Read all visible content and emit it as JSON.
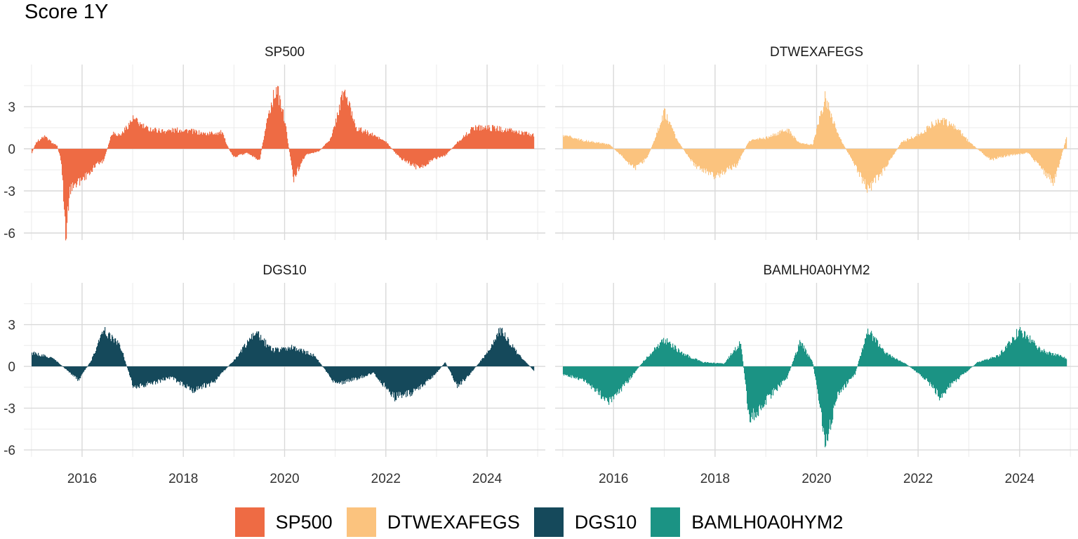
{
  "chart_data": {
    "type": "bar",
    "title": "Score 1Y",
    "facet_layout": "2x2",
    "x_ticks": [
      "2016",
      "2018",
      "2020",
      "2022",
      "2024"
    ],
    "y_ticks": [
      "3",
      "0",
      "-3",
      "-6"
    ],
    "ylim": [
      -6.5,
      6
    ],
    "xlim": [
      "2015-01",
      "2025-01"
    ],
    "grid": true,
    "legend_position": "bottom",
    "panels": [
      {
        "name": "SP500",
        "color": "#EE6B44",
        "points": [
          [
            "2015-01",
            -0.3
          ],
          [
            "2015-02",
            0.5
          ],
          [
            "2015-04",
            0.9
          ],
          [
            "2015-06",
            0.4
          ],
          [
            "2015-07",
            0.2
          ],
          [
            "2015-08",
            -1.0
          ],
          [
            "2015-09",
            -6.3
          ],
          [
            "2015-10",
            -3.0
          ],
          [
            "2015-12",
            -2.5
          ],
          [
            "2016-02",
            -2.0
          ],
          [
            "2016-04",
            -1.2
          ],
          [
            "2016-06",
            -0.9
          ],
          [
            "2016-08",
            1.2
          ],
          [
            "2016-10",
            1.0
          ],
          [
            "2017-01",
            2.2
          ],
          [
            "2017-04",
            1.5
          ],
          [
            "2017-08",
            1.3
          ],
          [
            "2018-01",
            1.4
          ],
          [
            "2018-06",
            1.1
          ],
          [
            "2018-10",
            1.2
          ],
          [
            "2018-12",
            -0.2
          ],
          [
            "2019-01",
            -0.6
          ],
          [
            "2019-04",
            -0.3
          ],
          [
            "2019-07",
            -0.8
          ],
          [
            "2019-09",
            2.5
          ],
          [
            "2019-11",
            4.5
          ],
          [
            "2020-01",
            2.0
          ],
          [
            "2020-03",
            -2.2
          ],
          [
            "2020-06",
            -0.4
          ],
          [
            "2020-09",
            -0.2
          ],
          [
            "2020-12",
            0.8
          ],
          [
            "2021-03",
            4.3
          ],
          [
            "2021-06",
            1.5
          ],
          [
            "2021-10",
            1.0
          ],
          [
            "2022-01",
            0.5
          ],
          [
            "2022-04",
            -0.6
          ],
          [
            "2022-09",
            -1.5
          ],
          [
            "2022-12",
            -0.8
          ],
          [
            "2023-03",
            -0.5
          ],
          [
            "2023-06",
            0.5
          ],
          [
            "2023-10",
            1.6
          ],
          [
            "2024-03",
            1.5
          ],
          [
            "2024-07",
            1.3
          ],
          [
            "2024-12",
            1.0
          ]
        ]
      },
      {
        "name": "DTWEXAFEGS",
        "color": "#FBC37E",
        "points": [
          [
            "2015-01",
            1.0
          ],
          [
            "2015-06",
            0.6
          ],
          [
            "2015-12",
            0.3
          ],
          [
            "2016-03",
            -0.6
          ],
          [
            "2016-06",
            -1.5
          ],
          [
            "2016-09",
            -0.6
          ],
          [
            "2017-01",
            2.7
          ],
          [
            "2017-04",
            0.6
          ],
          [
            "2017-08",
            -1.2
          ],
          [
            "2018-01",
            -2.0
          ],
          [
            "2018-06",
            -1.2
          ],
          [
            "2018-09",
            0.6
          ],
          [
            "2019-01",
            0.8
          ],
          [
            "2019-06",
            1.4
          ],
          [
            "2019-09",
            0.4
          ],
          [
            "2019-12",
            0.3
          ],
          [
            "2020-03",
            3.8
          ],
          [
            "2020-06",
            1.0
          ],
          [
            "2020-10",
            -1.2
          ],
          [
            "2021-01",
            -3.0
          ],
          [
            "2021-05",
            -1.5
          ],
          [
            "2021-09",
            0.5
          ],
          [
            "2022-01",
            1.0
          ],
          [
            "2022-06",
            2.2
          ],
          [
            "2022-10",
            1.5
          ],
          [
            "2023-01",
            0.5
          ],
          [
            "2023-06",
            -0.8
          ],
          [
            "2023-10",
            -0.5
          ],
          [
            "2024-03",
            -0.3
          ],
          [
            "2024-09",
            -2.5
          ],
          [
            "2024-12",
            0.8
          ]
        ]
      },
      {
        "name": "DGS10",
        "color": "#15495B",
        "points": [
          [
            "2015-01",
            1.0
          ],
          [
            "2015-06",
            0.6
          ],
          [
            "2015-12",
            -1.0
          ],
          [
            "2016-03",
            0.4
          ],
          [
            "2016-06",
            2.7
          ],
          [
            "2016-10",
            1.5
          ],
          [
            "2017-01",
            -1.5
          ],
          [
            "2017-06",
            -1.2
          ],
          [
            "2017-10",
            -0.8
          ],
          [
            "2018-03",
            -1.8
          ],
          [
            "2018-08",
            -1.2
          ],
          [
            "2019-01",
            0.5
          ],
          [
            "2019-06",
            2.5
          ],
          [
            "2019-10",
            1.2
          ],
          [
            "2020-03",
            1.4
          ],
          [
            "2020-08",
            0.8
          ],
          [
            "2021-01",
            -1.3
          ],
          [
            "2021-06",
            -0.9
          ],
          [
            "2021-10",
            -0.5
          ],
          [
            "2022-03",
            -2.3
          ],
          [
            "2022-08",
            -1.8
          ],
          [
            "2022-12",
            -0.8
          ],
          [
            "2023-03",
            0.3
          ],
          [
            "2023-06",
            -1.5
          ],
          [
            "2023-09",
            -0.5
          ],
          [
            "2024-01",
            1.0
          ],
          [
            "2024-04",
            2.7
          ],
          [
            "2024-08",
            1.0
          ],
          [
            "2024-12",
            -0.3
          ]
        ]
      },
      {
        "name": "BAMLH0A0HYM2",
        "color": "#1B9384",
        "points": [
          [
            "2015-01",
            -0.6
          ],
          [
            "2015-06",
            -1.0
          ],
          [
            "2015-12",
            -2.7
          ],
          [
            "2016-04",
            -1.2
          ],
          [
            "2016-08",
            0.4
          ],
          [
            "2017-01",
            2.0
          ],
          [
            "2017-05",
            1.0
          ],
          [
            "2017-10",
            0.3
          ],
          [
            "2018-03",
            0.2
          ],
          [
            "2018-07",
            1.8
          ],
          [
            "2018-09",
            -4.0
          ],
          [
            "2019-01",
            -2.5
          ],
          [
            "2019-06",
            -0.8
          ],
          [
            "2019-09",
            1.8
          ],
          [
            "2019-12",
            0.3
          ],
          [
            "2020-03",
            -5.6
          ],
          [
            "2020-06",
            -2.0
          ],
          [
            "2020-10",
            -0.6
          ],
          [
            "2021-01",
            2.7
          ],
          [
            "2021-05",
            1.0
          ],
          [
            "2021-10",
            0.2
          ],
          [
            "2022-03",
            -1.0
          ],
          [
            "2022-06",
            -2.2
          ],
          [
            "2022-10",
            -1.0
          ],
          [
            "2023-03",
            0.3
          ],
          [
            "2023-08",
            0.8
          ],
          [
            "2024-01",
            2.7
          ],
          [
            "2024-06",
            1.2
          ],
          [
            "2024-12",
            0.6
          ]
        ]
      }
    ]
  },
  "legend": [
    {
      "label": "SP500",
      "color": "#EE6B44"
    },
    {
      "label": "DTWEXAFEGS",
      "color": "#FBC37E"
    },
    {
      "label": "DGS10",
      "color": "#15495B"
    },
    {
      "label": "BAMLH0A0HYM2",
      "color": "#1B9384"
    }
  ]
}
